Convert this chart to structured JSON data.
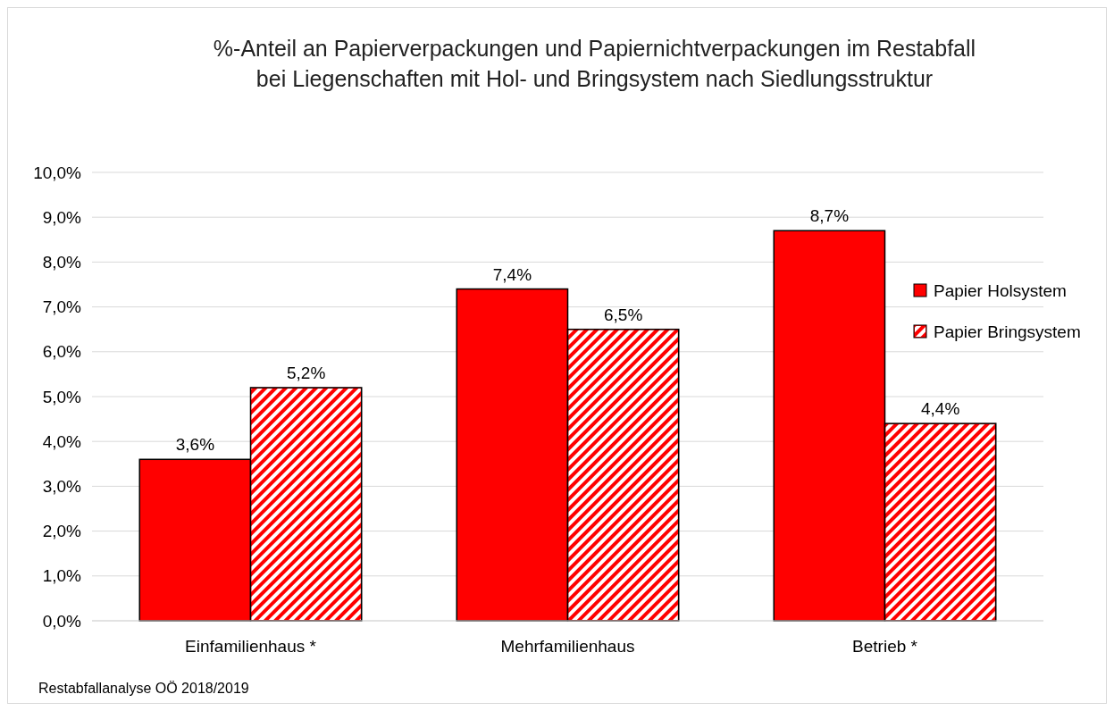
{
  "chart_data": {
    "type": "bar",
    "title": "%-Anteil an Papierverpackungen und Papiernichtverpackungen im Restabfall\nbei Liegenschaften mit Hol- und Bringsystem nach Siedlungsstruktur",
    "categories": [
      "Einfamilienhaus *",
      "Mehrfamilienhaus",
      "Betrieb *"
    ],
    "series": [
      {
        "name": "Papier Holsystem",
        "color": "#ff0000",
        "values": [
          3.6,
          7.4,
          8.7
        ],
        "value_labels": [
          "3,6%",
          "7,4%",
          "8,7%"
        ]
      },
      {
        "name": "Papier Bringsystem",
        "color": "#ff0000",
        "values": [
          5.2,
          6.5,
          4.4
        ],
        "value_labels": [
          "5,2%",
          "6,5%",
          "4,4%"
        ]
      }
    ],
    "ylim": [
      0,
      10
    ],
    "yticks": [
      {
        "value": 0,
        "label": "0,0%"
      },
      {
        "value": 1,
        "label": "1,0%"
      },
      {
        "value": 2,
        "label": "2,0%"
      },
      {
        "value": 3,
        "label": "3,0%"
      },
      {
        "value": 4,
        "label": "4,0%"
      },
      {
        "value": 5,
        "label": "5,0%"
      },
      {
        "value": 6,
        "label": "6,0%"
      },
      {
        "value": 7,
        "label": "7,0%"
      },
      {
        "value": 8,
        "label": "8,0%"
      },
      {
        "value": 9,
        "label": "9,0%"
      },
      {
        "value": 10,
        "label": "10,0%"
      }
    ],
    "grid": "y",
    "legend": "right",
    "annotations": [
      "Restabfallanalyse OÖ 2018/2019"
    ]
  }
}
